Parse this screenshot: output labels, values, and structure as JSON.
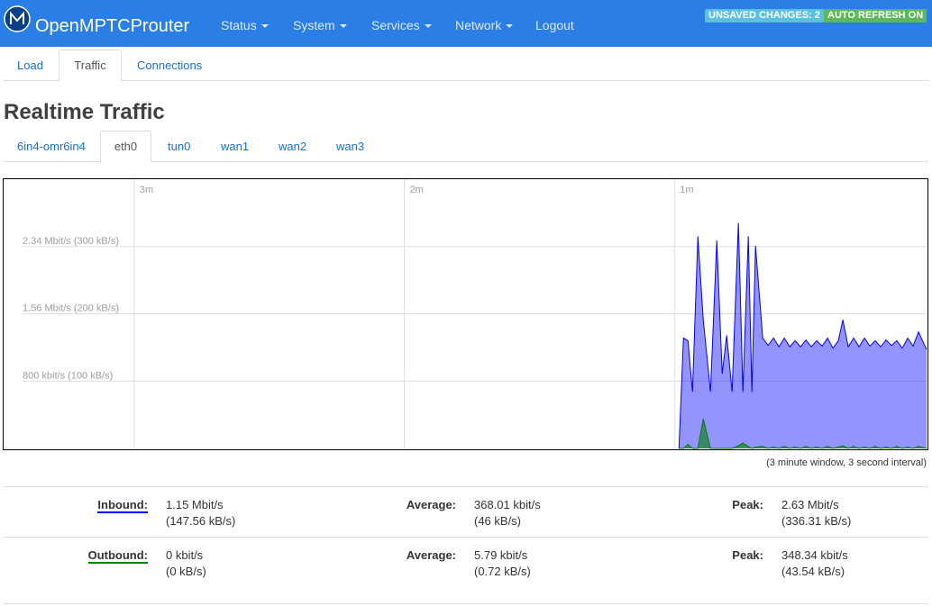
{
  "header": {
    "brand": "OpenMPTCProuter",
    "menu": [
      "Status",
      "System",
      "Services",
      "Network",
      "Logout"
    ],
    "badges": [
      "UNSAVED CHANGES: 2",
      "AUTO REFRESH ON"
    ]
  },
  "tabs": [
    "Load",
    "Traffic",
    "Connections"
  ],
  "title": "Realtime Traffic",
  "interfaces": [
    "6in4-omr6in4",
    "eth0",
    "tun0",
    "wan1",
    "wan2",
    "wan3"
  ],
  "chart": {
    "type": "area",
    "x": [
      -55,
      -54,
      -53,
      -52,
      -50.8,
      -49.6,
      -48,
      -46.6,
      -45.4,
      -44.4,
      -43.2,
      -41.8,
      -40.8,
      -39.6,
      -38.8,
      -38,
      -36.4,
      -35.2,
      -34,
      -32.8,
      -31.6,
      -30.4,
      -29.2,
      -28,
      -26.8,
      -25.6,
      -24.4,
      -23.2,
      -22,
      -20.8,
      -19.6,
      -18.6,
      -17.4,
      -16.2,
      -15,
      -13.8,
      -12.6,
      -11.4,
      -10.2,
      -9,
      -7.8,
      -6.6,
      -5.4,
      -4.2,
      -3,
      -1.8,
      0
    ],
    "xlim": [
      -205,
      0
    ],
    "xticks": [
      {
        "value": -176,
        "label": "3m"
      },
      {
        "value": -116,
        "label": "2m"
      },
      {
        "value": -56,
        "label": "1m"
      }
    ],
    "ylim": [
      0,
      400
    ],
    "yticks": [
      {
        "value": 100,
        "label": "800 kbit/s (100 kB/s)"
      },
      {
        "value": 200,
        "label": "1.56 Mbit/s (200 kB/s)"
      },
      {
        "value": 300,
        "label": "2.34 Mbit/s (300 kB/s)"
      }
    ],
    "grid": true,
    "series": [
      {
        "name": "Inbound:",
        "color": "#0000ff",
        "values": [
          0,
          164,
          160,
          84,
          315,
          191,
          84,
          309,
          111,
          168,
          84,
          335,
          84,
          315,
          84,
          301,
          164,
          153,
          164,
          151,
          164,
          151,
          160,
          151,
          161,
          151,
          160,
          152,
          164,
          149,
          160,
          191,
          151,
          164,
          151,
          164,
          152,
          160,
          151,
          161,
          153,
          160,
          149,
          164,
          152,
          173,
          147
        ]
      },
      {
        "name": "Outbound:",
        "color": "#008000",
        "values": [
          0,
          0,
          6,
          0,
          0,
          44,
          0,
          0,
          0,
          0,
          0,
          4,
          8,
          3,
          0,
          2,
          3,
          0,
          2,
          0,
          3,
          0,
          2,
          0,
          3,
          0,
          2,
          0,
          3,
          0,
          2,
          4,
          0,
          3,
          0,
          2,
          0,
          3,
          0,
          2,
          0,
          3,
          0,
          2,
          0,
          3,
          0
        ]
      }
    ],
    "note": "(3 minute window, 3 second interval)"
  },
  "stats": [
    {
      "current": [
        "1.15 Mbit/s",
        "(147.56 kB/s)"
      ],
      "average_label": "Average:",
      "average": [
        "368.01 kbit/s",
        "(46 kB/s)"
      ],
      "peak_label": "Peak:",
      "peak": [
        "2.63 Mbit/s",
        "(336.31 kB/s)"
      ]
    },
    {
      "current": [
        "0 kbit/s",
        "(0 kB/s)"
      ],
      "average_label": "Average:",
      "average": [
        "5.79 kbit/s",
        "(0.72 kB/s)"
      ],
      "peak_label": "Peak:",
      "peak": [
        "348.34 kbit/s",
        "(43.54 kB/s)"
      ]
    }
  ]
}
